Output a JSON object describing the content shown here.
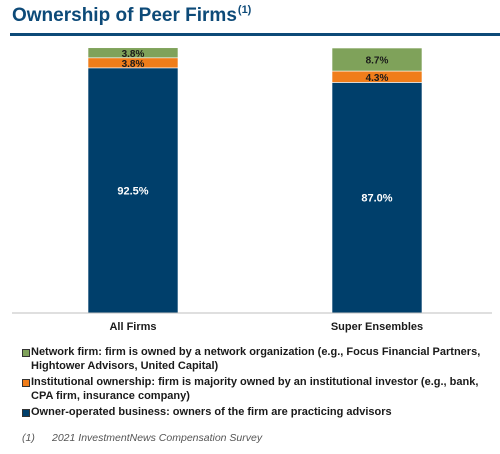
{
  "header": {
    "title": "Ownership of Peer Firms",
    "title_note": "(1)"
  },
  "chart_data": {
    "type": "bar",
    "stacked": true,
    "categories": [
      "All Firms",
      "Super Ensembles"
    ],
    "ylim": [
      0,
      100
    ],
    "series": [
      {
        "name": "Owner-operated business: owners of the firm are practicing advisors",
        "color": "#003f6b",
        "values": [
          92.5,
          87.0
        ],
        "labels": [
          "92.5%",
          "87.0%"
        ]
      },
      {
        "name": "Institutional ownership: firm is majority owned by an institutional investor (e.g., bank, CPA firm, insurance company)",
        "color": "#f07d1a",
        "values": [
          3.8,
          4.3
        ],
        "labels": [
          "3.8%",
          "4.3%"
        ]
      },
      {
        "name": "Network firm: firm is owned by a network organization (e.g., Focus Financial Partners, Hightower Advisors, United Capital)",
        "color": "#7fa25a",
        "values": [
          3.8,
          8.7
        ],
        "labels": [
          "3.8%",
          "8.7%"
        ]
      }
    ],
    "legend": [
      "Network firm: firm is owned by a network organization (e.g., Focus Financial Partners, Hightower Advisors, United Capital)",
      "Institutional ownership: firm is majority owned by an institutional investor (e.g., bank, CPA firm, insurance company)",
      "Owner-operated business: owners of the firm are practicing advisors"
    ],
    "legend_colors": [
      "#7fa25a",
      "#f07d1a",
      "#003f6b"
    ],
    "legend_position": "bottom",
    "grid": false
  },
  "footnote": {
    "marker": "(1)",
    "text": "2021 InvestmentNews Compensation Survey"
  }
}
